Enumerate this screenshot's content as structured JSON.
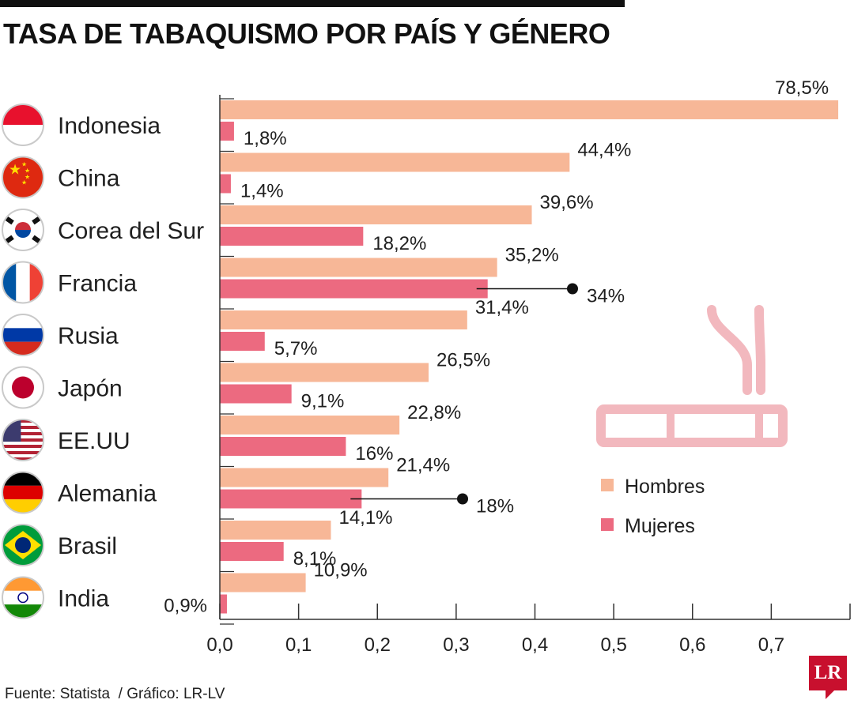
{
  "title": "TASA DE TABAQUISMO POR PAÍS Y GÉNERO",
  "source": "Fuente: Statista  / Gráfico: LR-LV",
  "logo": "LR",
  "colors": {
    "hombres": "#f7b797",
    "mujeres": "#ec6a80",
    "icon": "#f2b8be",
    "axis": "#333333"
  },
  "chart_data": {
    "type": "bar",
    "orientation": "horizontal",
    "categories": [
      "Indonesia",
      "China",
      "Corea del Sur",
      "Francia",
      "Rusia",
      "Japón",
      "EE.UU",
      "Alemania",
      "Brasil",
      "India"
    ],
    "flag_icons": [
      "indonesia-flag-icon",
      "china-flag-icon",
      "south-korea-flag-icon",
      "france-flag-icon",
      "russia-flag-icon",
      "japan-flag-icon",
      "usa-flag-icon",
      "germany-flag-icon",
      "brazil-flag-icon",
      "india-flag-icon"
    ],
    "series": [
      {
        "name": "Hombres",
        "values": [
          0.785,
          0.444,
          0.396,
          0.352,
          0.314,
          0.265,
          0.228,
          0.214,
          0.141,
          0.109
        ],
        "labels": [
          "78,5%",
          "44,4%",
          "39,6%",
          "35,2%",
          "31,4%",
          "26,5%",
          "22,8%",
          "21,4%",
          "14,1%",
          "10,9%"
        ]
      },
      {
        "name": "Mujeres",
        "values": [
          0.018,
          0.014,
          0.182,
          0.34,
          0.057,
          0.091,
          0.16,
          0.18,
          0.081,
          0.009
        ],
        "labels": [
          "1,8%",
          "1,4%",
          "18,2%",
          "34%",
          "5,7%",
          "9,1%",
          "16%",
          "18%",
          "8,1%",
          "0,9%"
        ]
      }
    ],
    "xlim": [
      0,
      0.8
    ],
    "xticks": [
      0.0,
      0.1,
      0.2,
      0.3,
      0.4,
      0.5,
      0.6,
      0.7
    ],
    "xtick_labels": [
      "0,0",
      "0,1",
      "0,2",
      "0,3",
      "0,4",
      "0,5",
      "0,6",
      "0,7"
    ],
    "legend": {
      "position": "right",
      "entries": [
        "Hombres",
        "Mujeres"
      ]
    },
    "grid": false,
    "decoration": "cigarette-icon"
  }
}
